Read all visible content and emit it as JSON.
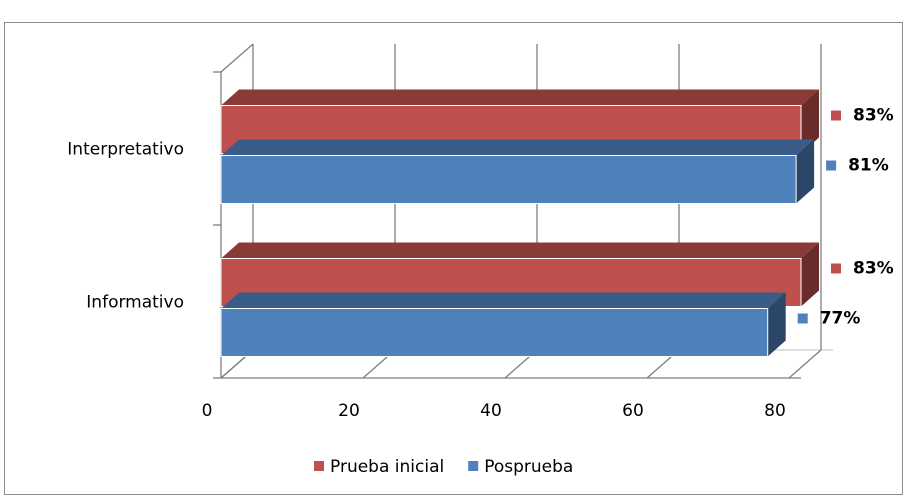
{
  "chart_data": {
    "type": "bar",
    "orientation": "horizontal",
    "style": "3d",
    "categories": [
      "Interpretativo",
      "Informativo"
    ],
    "series": [
      {
        "name": "Prueba inicial",
        "color": "#C0504D",
        "values": [
          83,
          83
        ],
        "labels": [
          "83%",
          "83%"
        ]
      },
      {
        "name": "Posprueba",
        "color": "#4F81BD",
        "values": [
          81,
          77
        ],
        "labels": [
          "81%",
          "77%"
        ]
      }
    ],
    "xlim": [
      0,
      80
    ],
    "xticks": [
      "0",
      "20",
      "40",
      "60",
      "80"
    ],
    "grid": true,
    "legend": "bottom",
    "title": "",
    "xlabel": "",
    "ylabel": ""
  }
}
